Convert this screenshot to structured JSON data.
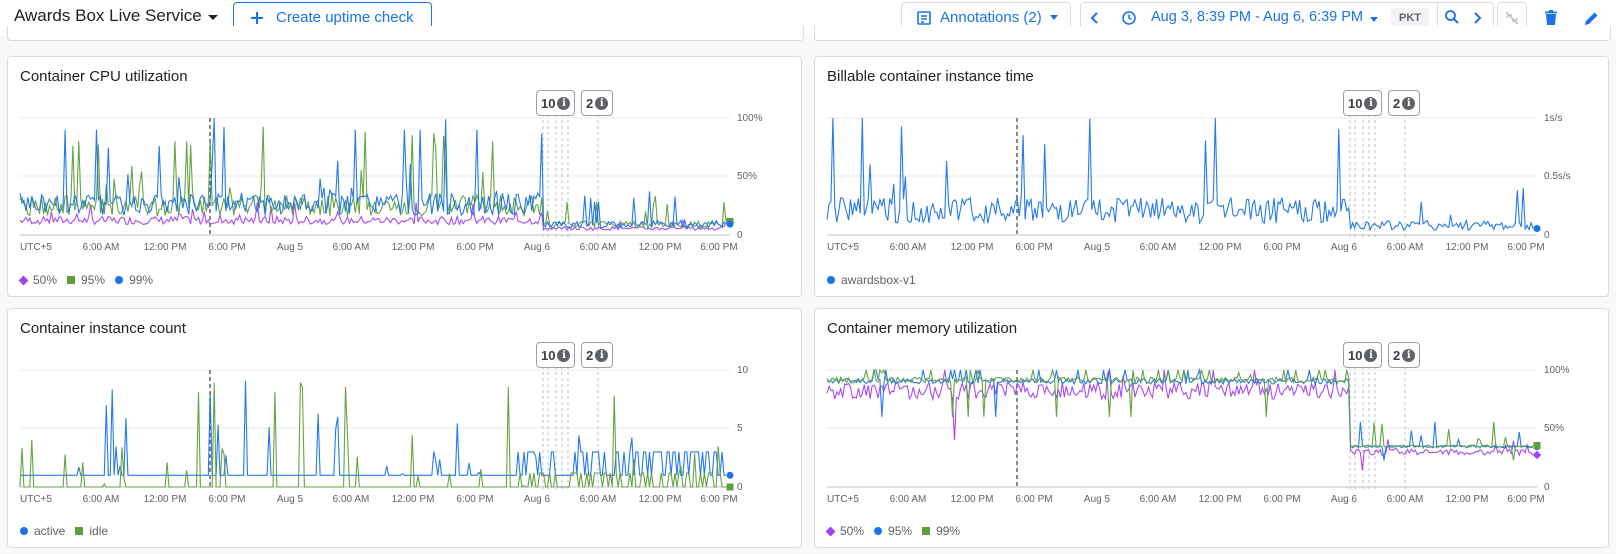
{
  "topbar": {
    "service_name": "Awards Box Live Service",
    "create_button": "Create uptime check",
    "annotations_button": "Annotations (2)",
    "time_range": "Aug 3, 8:39 PM - Aug 6, 6:39 PM",
    "timezone": "PKT"
  },
  "colors": {
    "accent": "#1a73e8",
    "purple": "#a142f4",
    "green": "#5e9e3c",
    "blue": "#1a73e8"
  },
  "x_ticks": [
    "UTC+5",
    "6:00 AM",
    "12:00 PM",
    "6:00 PM",
    "Aug 5",
    "6:00 AM",
    "12:00 PM",
    "6:00 PM",
    "Aug 6",
    "6:00 AM",
    "12:00 PM",
    "6:00 PM"
  ],
  "annotation_badges": [
    {
      "count": "10"
    },
    {
      "count": "2"
    }
  ],
  "panels": [
    {
      "title": "Container CPU utilization",
      "chart_data": {
        "type": "line",
        "title": "Container CPU utilization",
        "y_ticks": [
          "100%",
          "50%",
          "0"
        ],
        "ylim": [
          0,
          100
        ],
        "series": [
          {
            "name": "50%",
            "marker": "diamond",
            "color": "#a142f4",
            "base": 9,
            "amp": 7,
            "spike": 20,
            "late_factor": 0.45
          },
          {
            "name": "95%",
            "marker": "square",
            "color": "#5e9e3c",
            "base": 16,
            "amp": 18,
            "spike": 80,
            "late_factor": 0.35
          },
          {
            "name": "99%",
            "marker": "dot",
            "color": "#1a73e8",
            "base": 17,
            "amp": 19,
            "spike": 90,
            "late_factor": 0.35
          }
        ]
      }
    },
    {
      "title": "Billable container instance time",
      "chart_data": {
        "type": "line",
        "title": "Billable container instance time",
        "y_ticks": [
          "1s/s",
          "0.5s/s",
          "0"
        ],
        "ylim": [
          0,
          1
        ],
        "series": [
          {
            "name": "awardsbox-v1",
            "marker": "dot",
            "color": "#1a73e8",
            "base": 0.1,
            "amp": 0.22,
            "spike": 1.0,
            "late_factor": 0.4
          }
        ]
      }
    },
    {
      "title": "Container instance count",
      "chart_data": {
        "type": "line",
        "title": "Container instance count",
        "y_ticks": [
          "10",
          "5",
          "0"
        ],
        "ylim": [
          0,
          10
        ],
        "series": [
          {
            "name": "active",
            "marker": "dot",
            "color": "#1a73e8",
            "base": 1,
            "amp": 0.3,
            "spike": 10,
            "late_factor": 1.0
          },
          {
            "name": "idle",
            "marker": "square",
            "color": "#5e9e3c",
            "base": 0,
            "amp": 0.8,
            "spike": 9,
            "late_factor": 1.0
          }
        ]
      }
    },
    {
      "title": "Container memory utilization",
      "chart_data": {
        "type": "line",
        "title": "Container memory utilization",
        "y_ticks": [
          "100%",
          "50%",
          "0"
        ],
        "ylim": [
          0,
          100
        ],
        "series": [
          {
            "name": "50%",
            "marker": "diamond",
            "color": "#a142f4",
            "base": 75,
            "amp": 15,
            "spike": 40,
            "late_factor": 0.36
          },
          {
            "name": "95%",
            "marker": "dot",
            "color": "#1a73e8",
            "base": 88,
            "amp": 5,
            "spike": 60,
            "late_factor": 0.38
          },
          {
            "name": "99%",
            "marker": "square",
            "color": "#5e9e3c",
            "base": 89,
            "amp": 5,
            "spike": 60,
            "late_factor": 0.38
          }
        ]
      }
    }
  ]
}
